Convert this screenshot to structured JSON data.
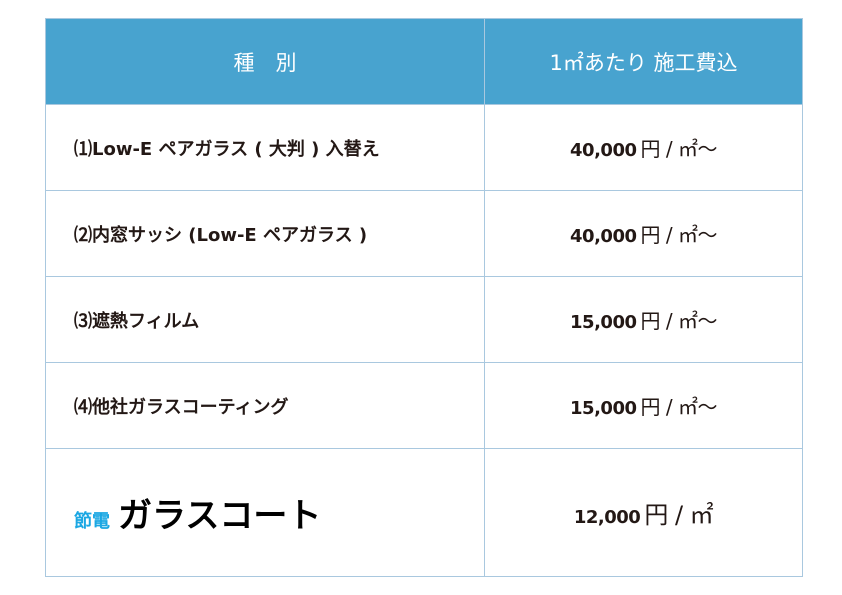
{
  "header": {
    "col1": "種　別",
    "col2": "1㎡あたり 施工費込"
  },
  "rows": [
    {
      "name": "⑴Low-E ペアガラス ( 大判 ) 入替え",
      "price": "40,000",
      "unit": "円 / ㎡〜"
    },
    {
      "name": "⑵内窓サッシ (Low-E ペアガラス )",
      "price": "40,000",
      "unit": "円 / ㎡〜"
    },
    {
      "name": "⑶遮熱フィルム",
      "price": "15,000",
      "unit": "円 / ㎡〜"
    },
    {
      "name": "⑷他社ガラスコーティング",
      "price": "15,000",
      "unit": "円 / ㎡〜"
    }
  ],
  "highlight": {
    "brand_part1": "節電",
    "brand_part2": "ガラスコート",
    "price": "12,000",
    "unit": "円 / ㎡"
  },
  "colors": {
    "header_bg": "#48a3cf",
    "brand_blue": "#1ba7e3",
    "border": "#a9c8df"
  }
}
